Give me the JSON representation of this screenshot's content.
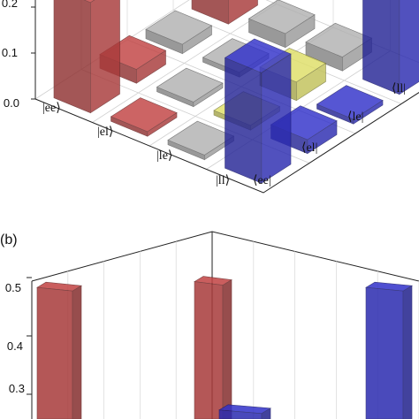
{
  "chart_data": [
    {
      "panel": "",
      "type": "bar",
      "title": "",
      "row_labels": [
        "|ee⟩",
        "|el⟩",
        "|le⟩",
        "|ll⟩"
      ],
      "col_labels": [
        "⟨ee|",
        "⟨el|",
        "⟨le|",
        "⟨ll|"
      ],
      "zlim": [
        0,
        0.2
      ],
      "z_ticks": [
        "0.0",
        "0.1",
        "0.2"
      ],
      "grid": true,
      "colors": {
        "ee_row": "#a83a3a",
        "off_diag_a": "#9a9a9a",
        "off_diag_b": "#c2c25a",
        "ll_row": "#2b2bb0"
      },
      "matrix": [
        [
          0.24,
          0.03,
          0.02,
          0.24
        ],
        [
          0.01,
          0.01,
          0.01,
          0.03
        ],
        [
          0.01,
          0.01,
          0.04,
          0.03
        ],
        [
          0.24,
          0.03,
          0.01,
          0.24
        ]
      ]
    },
    {
      "panel": "(b)",
      "type": "bar",
      "title": "",
      "zlim": [
        0.2,
        0.5
      ],
      "z_ticks": [
        "0.3",
        "0.4",
        "0.5"
      ],
      "grid": true,
      "bars": [
        {
          "color": "#a83a3a",
          "value": 0.48
        },
        {
          "color": "#a83a3a",
          "value": 0.49
        },
        {
          "color": "#2b2bb0",
          "value": 0.27
        },
        {
          "color": "#2b2bb0",
          "value": 0.48
        }
      ]
    }
  ]
}
